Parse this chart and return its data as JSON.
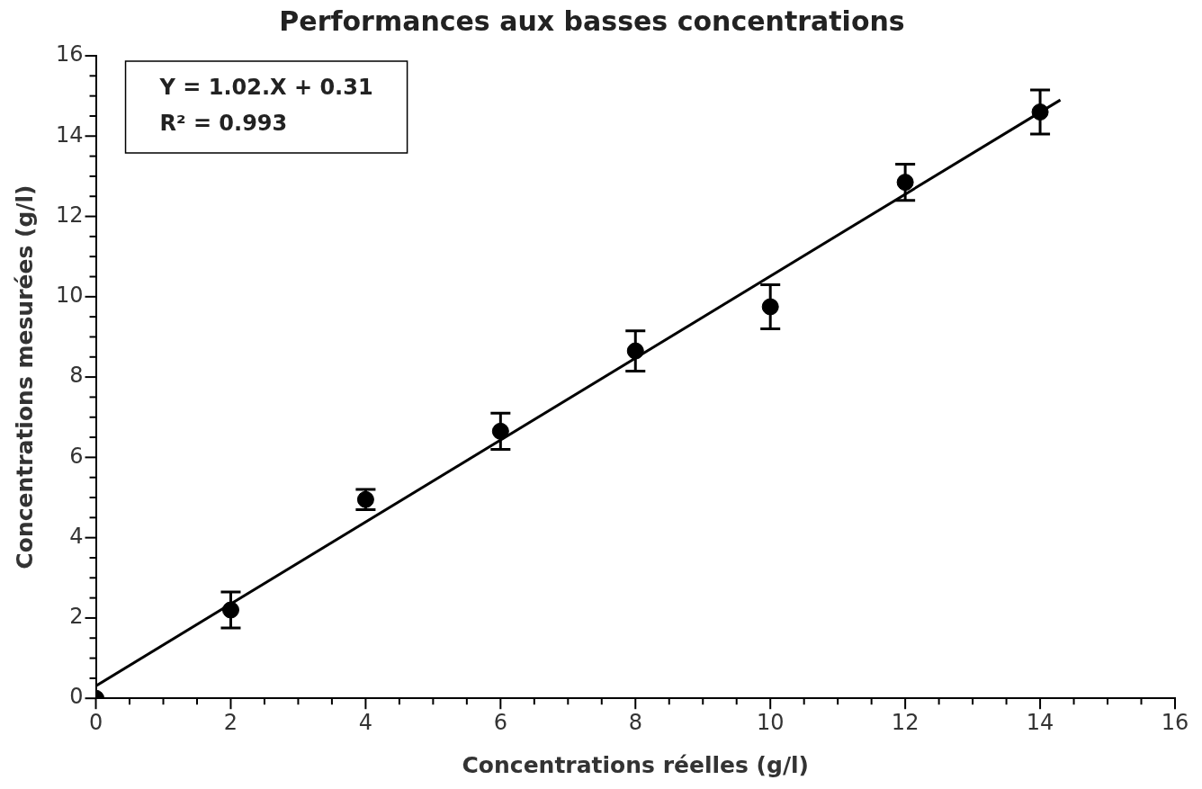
{
  "chart_data": {
    "type": "scatter",
    "title": "Performances aux basses concentrations",
    "xlabel": "Concentrations réelles (g/l)",
    "ylabel": "Concentrations mesurées (g/l)",
    "annotations": [
      "Y = 1.02.X + 0.31",
      "R² = 0.993"
    ],
    "series": [
      {
        "marker": "circle",
        "color": "#000000",
        "x": [
          0,
          2,
          4,
          6,
          8,
          10,
          12,
          14
        ],
        "values": [
          0,
          2.2,
          4.95,
          6.65,
          8.65,
          9.75,
          12.85,
          14.6
        ],
        "errors": [
          null,
          0.45,
          0.25,
          0.45,
          0.5,
          0.55,
          0.45,
          0.55
        ]
      },
      {
        "type": "line",
        "marker": "none",
        "color": "#000000",
        "x": [
          0,
          14.3
        ],
        "values": [
          0.31,
          14.9
        ]
      }
    ],
    "grid": false,
    "legend": false,
    "xlim": [
      0,
      16
    ],
    "ylim": [
      0,
      16
    ],
    "xticks": [
      0,
      {
        "value": 0.5,
        "label": null
      },
      {
        "value": 1,
        "label": null
      },
      {
        "value": 1.5,
        "label": null
      },
      2,
      {
        "value": 2.5,
        "label": null
      },
      {
        "value": 3,
        "label": null
      },
      {
        "value": 3.5,
        "label": null
      },
      4,
      {
        "value": 4.5,
        "label": null
      },
      {
        "value": 5,
        "label": null
      },
      {
        "value": 5.5,
        "label": null
      },
      6,
      {
        "value": 6.5,
        "label": null
      },
      {
        "value": 7,
        "label": null
      },
      {
        "value": 7.5,
        "label": null
      },
      8,
      {
        "value": 8.5,
        "label": null
      },
      {
        "value": 9,
        "label": null
      },
      {
        "value": 9.5,
        "label": null
      },
      10,
      {
        "value": 10.5,
        "label": null
      },
      {
        "value": 11,
        "label": null
      },
      {
        "value": 11.5,
        "label": null
      },
      12,
      {
        "value": 12.5,
        "label": null
      },
      {
        "value": 13,
        "label": null
      },
      {
        "value": 13.5,
        "label": null
      },
      14,
      {
        "value": 14.5,
        "label": null
      },
      {
        "value": 15,
        "label": null
      },
      {
        "value": 15.5,
        "label": null
      },
      16
    ],
    "yticks": [
      0,
      {
        "value": 0.5,
        "label": null
      },
      {
        "value": 1,
        "label": null
      },
      {
        "value": 1.5,
        "label": null
      },
      2,
      {
        "value": 2.5,
        "label": null
      },
      {
        "value": 3,
        "label": null
      },
      {
        "value": 3.5,
        "label": null
      },
      4,
      {
        "value": 4.5,
        "label": null
      },
      {
        "value": 5,
        "label": null
      },
      {
        "value": 5.5,
        "label": null
      },
      6,
      {
        "value": 6.5,
        "label": null
      },
      {
        "value": 7,
        "label": null
      },
      {
        "value": 7.5,
        "label": null
      },
      8,
      {
        "value": 8.5,
        "label": null
      },
      {
        "value": 9,
        "label": null
      },
      {
        "value": 9.5,
        "label": null
      },
      10,
      {
        "value": 10.5,
        "label": null
      },
      {
        "value": 11,
        "label": null
      },
      {
        "value": 11.5,
        "label": null
      },
      12,
      {
        "value": 12.5,
        "label": null
      },
      {
        "value": 13,
        "label": null
      },
      {
        "value": 13.5,
        "label": null
      },
      14,
      {
        "value": 14.5,
        "label": null
      },
      {
        "value": 15,
        "label": null
      },
      {
        "value": 15.5,
        "label": null
      },
      16
    ]
  }
}
